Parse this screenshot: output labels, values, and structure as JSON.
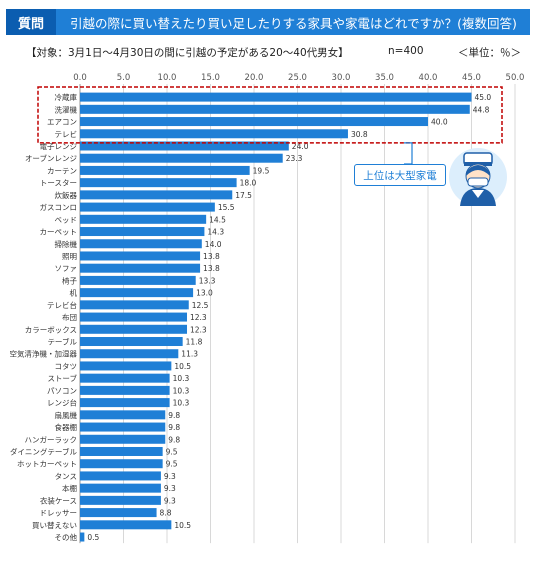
{
  "question_label": "質問",
  "question_text": "引越の際に買い替えたり買い足したりする家具や家電はどれですか？(複数回答)",
  "subtitle": "【対象：3月1日～4月30日の間に引越の予定がある20～40代男女】",
  "sample_size": "n=400",
  "unit": "＜単位：％＞",
  "callout_text": "上位は大型家電",
  "colors": {
    "bar": "#1f7fd6",
    "header": "#1f7fd6",
    "highlight": "#c00000",
    "grid": "#c8c8c8"
  },
  "chart_data": {
    "type": "bar",
    "orientation": "horizontal",
    "categories": [
      "冷蔵庫",
      "洗濯機",
      "エアコン",
      "テレビ",
      "電子レンジ",
      "オーブンレンジ",
      "カーテン",
      "トースター",
      "炊飯器",
      "ガスコンロ",
      "ベッド",
      "カーペット",
      "掃除機",
      "照明",
      "ソファ",
      "椅子",
      "机",
      "テレビ台",
      "布団",
      "カラーボックス",
      "テーブル",
      "空気清浄機・加湿器",
      "コタツ",
      "ストーブ",
      "パソコン",
      "レンジ台",
      "扇風機",
      "食器棚",
      "ハンガーラック",
      "ダイニングテーブル",
      "ホットカーペット",
      "タンス",
      "本棚",
      "衣装ケース",
      "ドレッサー",
      "買い替えない",
      "その他"
    ],
    "values": [
      45.0,
      44.8,
      40.0,
      30.8,
      24.0,
      23.3,
      19.5,
      18.0,
      17.5,
      15.5,
      14.5,
      14.3,
      14.0,
      13.8,
      13.8,
      13.3,
      13.0,
      12.5,
      12.3,
      12.3,
      11.8,
      11.3,
      10.5,
      10.3,
      10.3,
      10.3,
      9.8,
      9.8,
      9.8,
      9.5,
      9.5,
      9.3,
      9.3,
      9.3,
      8.8,
      10.5,
      0.5
    ],
    "value_labels": [
      "45.0",
      "44.8",
      "40.0",
      "30.8",
      "24.0",
      "23.3",
      "19.5",
      "18.0",
      "17.5",
      "15.5",
      "14.5",
      "14.3",
      "14.0",
      "13.8",
      "13.8",
      "13.3",
      "13.0",
      "12.5",
      "12.3",
      "12.3",
      "11.8",
      "11.3",
      "10.5",
      "10.3",
      "10.3",
      "10.3",
      "9.8",
      "9.8",
      "9.8",
      "9.5",
      "9.5",
      "9.3",
      "9.3",
      "9.3",
      "8.8",
      "10.5",
      "0.5"
    ],
    "xlim": [
      0,
      50
    ],
    "xticks": [
      "0.0",
      "5.0",
      "10.0",
      "15.0",
      "20.0",
      "25.0",
      "30.0",
      "35.0",
      "40.0",
      "45.0",
      "50.0"
    ],
    "highlighted_categories": [
      "冷蔵庫",
      "洗濯機",
      "エアコン",
      "テレビ"
    ],
    "grid": true
  }
}
